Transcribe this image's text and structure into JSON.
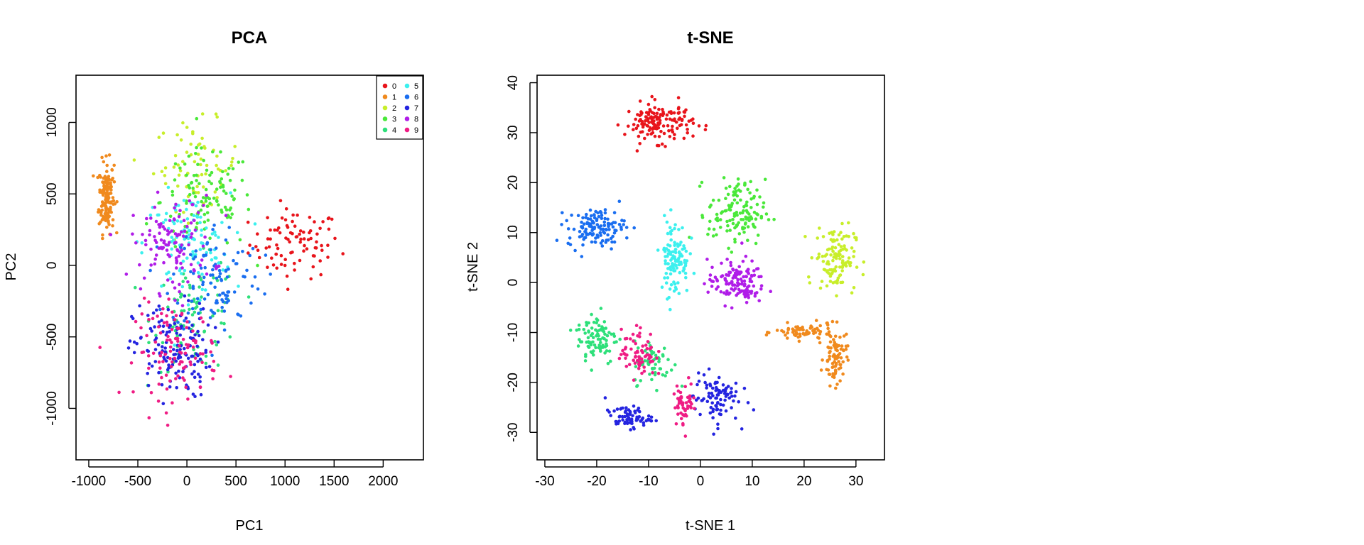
{
  "chart_data": [
    {
      "type": "scatter",
      "title": "PCA",
      "xlabel": "PC1",
      "ylabel": "PC2",
      "xlim": [
        -1130,
        2410
      ],
      "ylim": [
        -1360,
        1330
      ],
      "x_ticks": [
        "-1000",
        "-500",
        "0",
        "500",
        "1000",
        "1500",
        "2000"
      ],
      "x_tick_values": [
        -1000,
        -500,
        0,
        500,
        1000,
        1500,
        2000
      ],
      "y_ticks": [
        "-1000",
        "-500",
        "0",
        "500",
        "1000"
      ],
      "y_tick_values": [
        -1000,
        -500,
        0,
        500,
        1000
      ],
      "grid": false,
      "legend": {
        "position": "top-right",
        "entries": [
          "0",
          "1",
          "2",
          "3",
          "4",
          "5",
          "6",
          "7",
          "8",
          "9"
        ]
      },
      "series": [
        {
          "name": "0",
          "color": "#e8141b",
          "center": [
            1100,
            150
          ],
          "spread": [
            420,
            220
          ],
          "n": 90
        },
        {
          "name": "1",
          "color": "#f08a1e",
          "center": [
            -820,
            480
          ],
          "spread": [
            70,
            230
          ],
          "n": 150
        },
        {
          "name": "2",
          "color": "#c8ee2a",
          "center": [
            100,
            700
          ],
          "spread": [
            400,
            280
          ],
          "n": 70
        },
        {
          "name": "3",
          "color": "#4ae83a",
          "center": [
            200,
            450
          ],
          "spread": [
            420,
            320
          ],
          "n": 110
        },
        {
          "name": "4",
          "color": "#2ee07a",
          "center": [
            100,
            -350
          ],
          "spread": [
            400,
            350
          ],
          "n": 90
        },
        {
          "name": "5",
          "color": "#3cf0ee",
          "center": [
            0,
            150
          ],
          "spread": [
            400,
            320
          ],
          "n": 110
        },
        {
          "name": "6",
          "color": "#1a6ef0",
          "center": [
            300,
            -80
          ],
          "spread": [
            420,
            350
          ],
          "n": 110
        },
        {
          "name": "7",
          "color": "#2424e0",
          "center": [
            -150,
            -600
          ],
          "spread": [
            360,
            300
          ],
          "n": 150
        },
        {
          "name": "8",
          "color": "#b01de8",
          "center": [
            -150,
            150
          ],
          "spread": [
            380,
            300
          ],
          "n": 120
        },
        {
          "name": "9",
          "color": "#ef1c84",
          "center": [
            -100,
            -600
          ],
          "spread": [
            380,
            300
          ],
          "n": 110
        }
      ]
    },
    {
      "type": "scatter",
      "title": "t-SNE",
      "xlabel": "t-SNE 1",
      "ylabel": "t-SNE 2",
      "xlim": [
        -31.5,
        35.5
      ],
      "ylim": [
        -35.5,
        41.5
      ],
      "x_ticks": [
        "-30",
        "-20",
        "-10",
        "0",
        "10",
        "20",
        "30"
      ],
      "x_tick_values": [
        -30,
        -20,
        -10,
        0,
        10,
        20,
        30
      ],
      "y_ticks": [
        "-30",
        "-20",
        "-10",
        "0",
        "10",
        "20",
        "30",
        "40"
      ],
      "y_tick_values": [
        -30,
        -20,
        -10,
        0,
        10,
        20,
        30,
        40
      ],
      "grid": false,
      "series": [
        {
          "name": "0",
          "color": "#e8141b",
          "clusters": [
            [
              -8,
              32,
              6,
              3.5,
              150
            ]
          ]
        },
        {
          "name": "1",
          "color": "#f08a1e",
          "clusters": [
            [
              20,
              -10,
              5,
              1.5,
              70
            ],
            [
              26,
              -15,
              2,
              5,
              80
            ]
          ]
        },
        {
          "name": "2",
          "color": "#c8ee2a",
          "clusters": [
            [
              26,
              5,
              3.5,
              6,
              120
            ]
          ]
        },
        {
          "name": "3",
          "color": "#4ae83a",
          "clusters": [
            [
              7,
              14,
              5,
              6,
              130
            ]
          ]
        },
        {
          "name": "4",
          "color": "#2ee07a",
          "clusters": [
            [
              -20,
              -11,
              3.5,
              5,
              90
            ],
            [
              -9,
              -16,
              3.5,
              4,
              60
            ]
          ]
        },
        {
          "name": "5",
          "color": "#3cf0ee",
          "clusters": [
            [
              -5,
              5,
              2.5,
              7,
              110
            ]
          ]
        },
        {
          "name": "6",
          "color": "#1a6ef0",
          "clusters": [
            [
              -20,
              11,
              5,
              3.5,
              130
            ]
          ]
        },
        {
          "name": "7",
          "color": "#2424e0",
          "clusters": [
            [
              -14,
              -27,
              4,
              2,
              70
            ],
            [
              3,
              -23,
              4,
              4.5,
              90
            ]
          ]
        },
        {
          "name": "8",
          "color": "#b01de8",
          "clusters": [
            [
              7,
              0,
              5,
              4,
              130
            ]
          ]
        },
        {
          "name": "9",
          "color": "#ef1c84",
          "clusters": [
            [
              -12,
              -14,
              3,
              4.5,
              70
            ],
            [
              -3,
              -24,
              2,
              4,
              50
            ]
          ]
        }
      ]
    }
  ]
}
